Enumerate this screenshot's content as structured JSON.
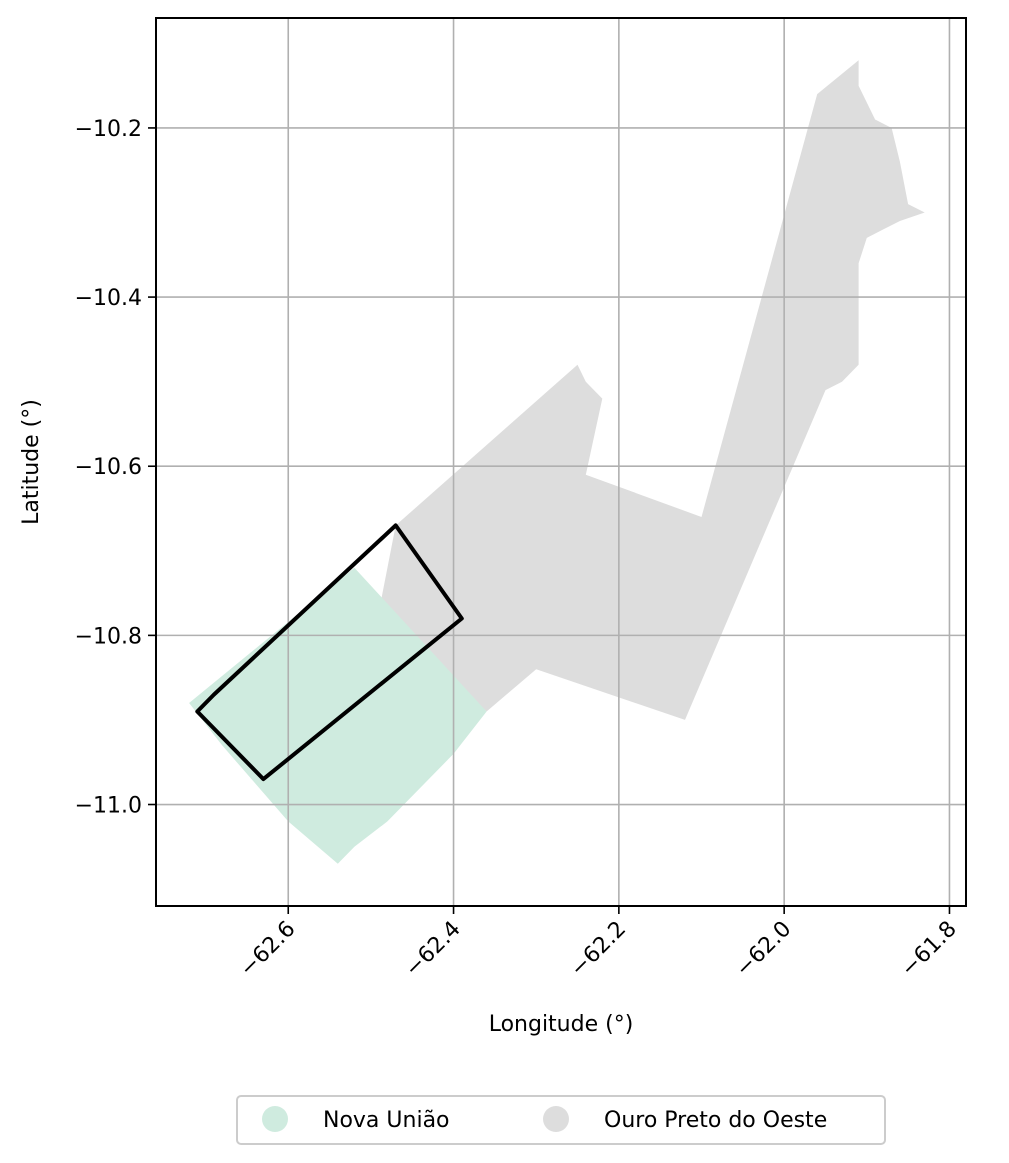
{
  "chart_data": {
    "type": "map",
    "xlabel": "Longitude (°)",
    "ylabel": "Latitude (°)",
    "xlim": [
      -62.76,
      -61.78
    ],
    "ylim": [
      -11.12,
      -10.07
    ],
    "xticks": [
      {
        "value": -62.6,
        "label": "−62.6"
      },
      {
        "value": -62.4,
        "label": "−62.4"
      },
      {
        "value": -62.2,
        "label": "−62.2"
      },
      {
        "value": -62.0,
        "label": "−62.0"
      },
      {
        "value": -61.8,
        "label": "−61.8"
      }
    ],
    "yticks": [
      {
        "value": -10.2,
        "label": "−10.2"
      },
      {
        "value": -10.4,
        "label": "−10.4"
      },
      {
        "value": -10.6,
        "label": "−10.6"
      },
      {
        "value": -10.8,
        "label": "−10.8"
      },
      {
        "value": -11.0,
        "label": "−11.0"
      }
    ],
    "grid": true,
    "legend_position": "bottom-center",
    "regions": [
      {
        "name": "Ouro Preto do Oeste",
        "color": "#dddddd",
        "polygon": [
          [
            -62.47,
            -10.67
          ],
          [
            -62.25,
            -10.48
          ],
          [
            -62.24,
            -10.5
          ],
          [
            -62.22,
            -10.52
          ],
          [
            -62.24,
            -10.61
          ],
          [
            -62.1,
            -10.66
          ],
          [
            -61.96,
            -10.16
          ],
          [
            -61.91,
            -10.12
          ],
          [
            -61.91,
            -10.15
          ],
          [
            -61.89,
            -10.19
          ],
          [
            -61.87,
            -10.2
          ],
          [
            -61.86,
            -10.24
          ],
          [
            -61.85,
            -10.29
          ],
          [
            -61.83,
            -10.3
          ],
          [
            -61.86,
            -10.31
          ],
          [
            -61.88,
            -10.32
          ],
          [
            -61.9,
            -10.33
          ],
          [
            -61.91,
            -10.36
          ],
          [
            -61.91,
            -10.42
          ],
          [
            -61.91,
            -10.48
          ],
          [
            -61.93,
            -10.5
          ],
          [
            -61.95,
            -10.51
          ],
          [
            -62.12,
            -10.9
          ],
          [
            -62.3,
            -10.84
          ],
          [
            -62.36,
            -10.89
          ],
          [
            -62.49,
            -10.77
          ]
        ]
      },
      {
        "name": "Nova União",
        "color": "#cfebdf",
        "polygon": [
          [
            -62.72,
            -10.88
          ],
          [
            -62.52,
            -10.72
          ],
          [
            -62.36,
            -10.89
          ],
          [
            -62.4,
            -10.94
          ],
          [
            -62.48,
            -11.02
          ],
          [
            -62.52,
            -11.05
          ],
          [
            -62.54,
            -11.07
          ],
          [
            -62.6,
            -11.02
          ],
          [
            -62.68,
            -10.93
          ]
        ]
      }
    ],
    "outline": {
      "color": "#000000",
      "polygon": [
        [
          -62.47,
          -10.67
        ],
        [
          -62.39,
          -10.78
        ],
        [
          -62.63,
          -10.97
        ],
        [
          -62.71,
          -10.89
        ],
        [
          -62.69,
          -10.87
        ]
      ]
    },
    "legend": [
      {
        "label": "Nova União",
        "color": "#cfebdf"
      },
      {
        "label": "Ouro Preto do Oeste",
        "color": "#dddddd"
      }
    ]
  }
}
